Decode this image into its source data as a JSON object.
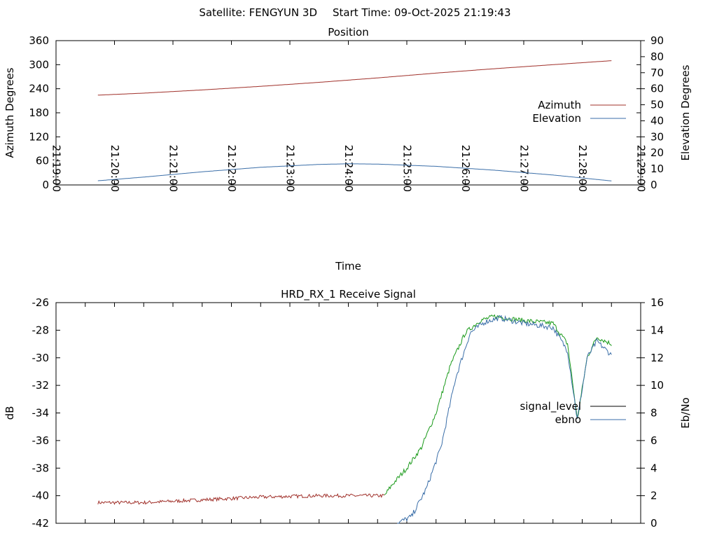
{
  "header": {
    "satellite": "Satellite: FENGYUN 3D",
    "start_time": "Start Time: 09-Oct-2025 21:19:43"
  },
  "colors": {
    "azimuth": "#a0302a",
    "elevation": "#3a6ea8",
    "signal_level": "#000000",
    "ebno": "#3a6ea8",
    "signal_green": "#1a9a1a",
    "signal_red": "#a0302a"
  },
  "chart_data": [
    {
      "type": "line",
      "title": "Position",
      "xlabel": "Time",
      "ylabel": "Azimuth Degrees",
      "y2label": "Elevation Degrees",
      "xlim": [
        "21:19:00",
        "21:29:00"
      ],
      "x_ticks": [
        "21:19:00",
        "21:20:00",
        "21:21:00",
        "21:22:00",
        "21:23:00",
        "21:24:00",
        "21:25:00",
        "21:26:00",
        "21:27:00",
        "21:28:00",
        "21:29:00"
      ],
      "ylim": [
        0,
        360
      ],
      "y_ticks": [
        0,
        60,
        120,
        180,
        240,
        300,
        360
      ],
      "y2lim": [
        0,
        90
      ],
      "y2_ticks": [
        0,
        10,
        20,
        30,
        40,
        50,
        60,
        70,
        80,
        90
      ],
      "legend_position": "right",
      "series": [
        {
          "name": "Azimuth",
          "axis": "y",
          "x": [
            "21:19:43",
            "21:20:30",
            "21:21:30",
            "21:22:30",
            "21:23:30",
            "21:24:30",
            "21:25:30",
            "21:26:30",
            "21:27:30",
            "21:28:30"
          ],
          "values": [
            224,
            229,
            237,
            246,
            256,
            267,
            279,
            290,
            300,
            310
          ]
        },
        {
          "name": "Elevation",
          "axis": "y2",
          "x": [
            "21:19:43",
            "21:20:30",
            "21:21:30",
            "21:22:30",
            "21:23:30",
            "21:24:00",
            "21:24:30",
            "21:25:30",
            "21:26:30",
            "21:27:30",
            "21:28:30"
          ],
          "values": [
            2.6,
            4.9,
            8.2,
            11.0,
            12.8,
            13.2,
            13.0,
            11.6,
            9.2,
            6.2,
            2.5
          ]
        }
      ]
    },
    {
      "type": "line",
      "title": "HRD_RX_1 Receive Signal",
      "ylabel": "dB",
      "y2label": "Eb/No",
      "ylim": [
        -42,
        -26
      ],
      "y_ticks": [
        -42,
        -40,
        -38,
        -36,
        -34,
        -32,
        -30,
        -28,
        -26
      ],
      "y2lim": [
        0,
        16
      ],
      "y2_ticks": [
        0,
        2,
        4,
        6,
        8,
        10,
        12,
        14,
        16
      ],
      "legend_position": "right",
      "series": [
        {
          "name": "signal_level",
          "axis": "y",
          "x": [
            "21:19:43",
            "21:20:30",
            "21:21:30",
            "21:22:30",
            "21:23:30",
            "21:24:00",
            "21:24:37",
            "21:24:45",
            "21:25:00",
            "21:25:15",
            "21:25:30",
            "21:25:45",
            "21:26:00",
            "21:26:15",
            "21:26:30",
            "21:27:00",
            "21:27:30",
            "21:27:45",
            "21:27:55",
            "21:28:05",
            "21:28:15",
            "21:28:30"
          ],
          "values": [
            -40.5,
            -40.5,
            -40.3,
            -40.1,
            -40.0,
            -40.0,
            -40.0,
            -39.2,
            -38.0,
            -36.5,
            -34.0,
            -30.5,
            -28.2,
            -27.3,
            -27.0,
            -27.3,
            -27.5,
            -29.0,
            -34.5,
            -30.0,
            -28.5,
            -29.0
          ]
        },
        {
          "name": "ebno",
          "axis": "y2",
          "x": [
            "21:24:50",
            "21:25:05",
            "21:25:20",
            "21:25:35",
            "21:25:50",
            "21:26:05",
            "21:26:20",
            "21:26:35",
            "21:27:00",
            "21:27:30",
            "21:27:45",
            "21:27:55",
            "21:28:05",
            "21:28:15",
            "21:28:30"
          ],
          "values": [
            0,
            0.5,
            2.5,
            5.5,
            10.5,
            13.8,
            14.6,
            14.9,
            14.5,
            14.2,
            12.5,
            7.5,
            12.0,
            13.2,
            12.2
          ]
        }
      ]
    }
  ]
}
